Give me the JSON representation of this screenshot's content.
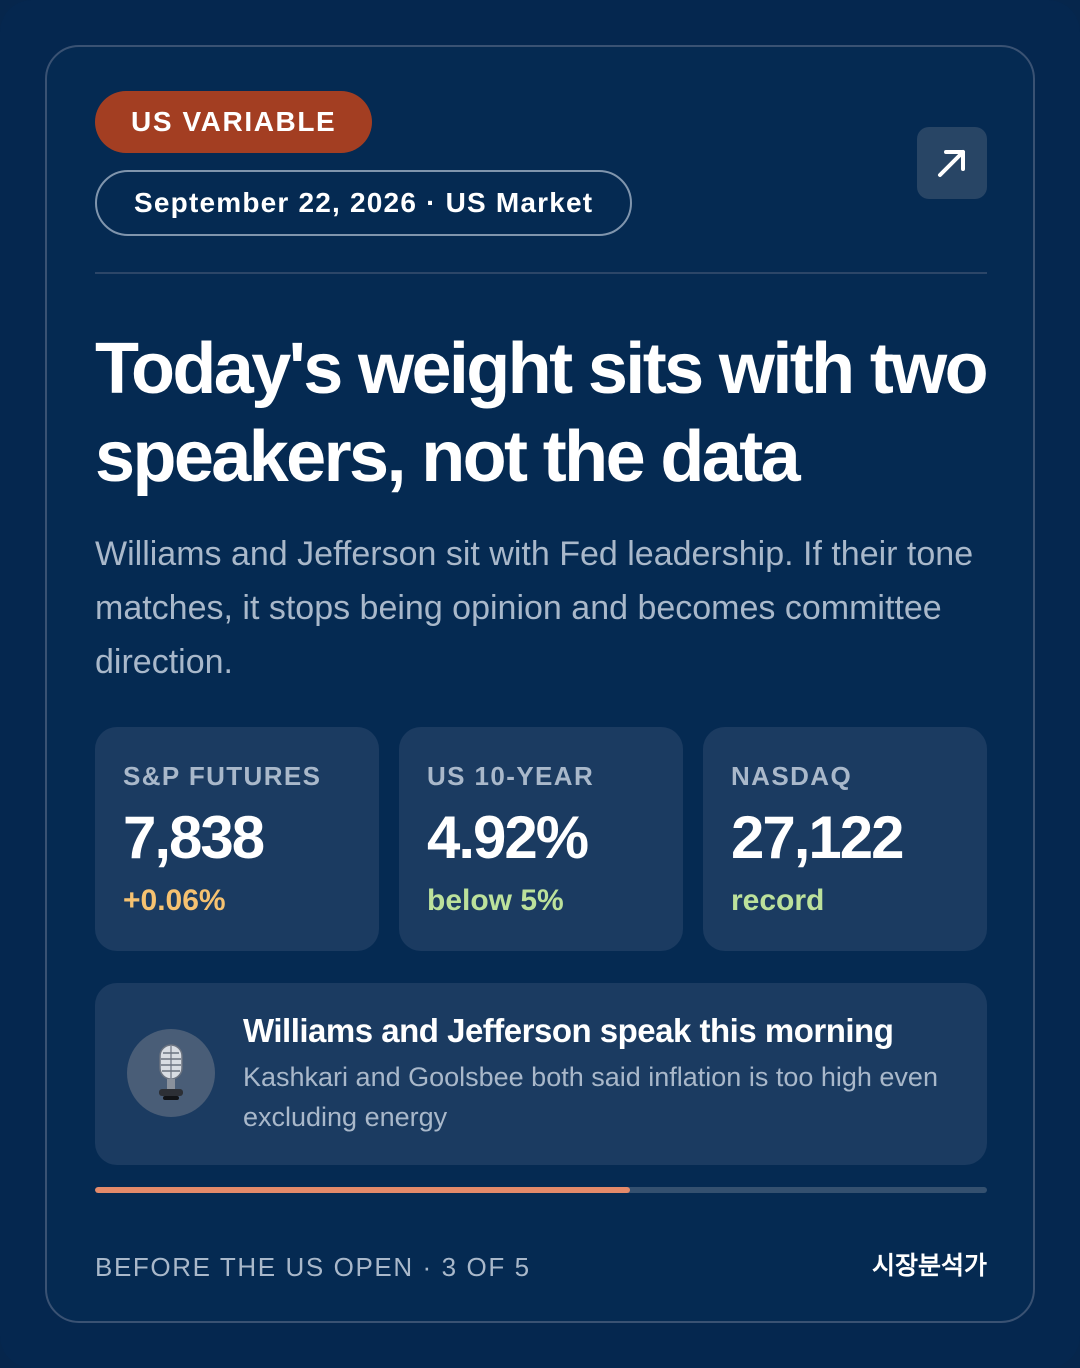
{
  "header": {
    "category_badge": "US VARIABLE",
    "date_market": "September 22, 2026 · US Market",
    "share_icon": "arrow-up-right-icon"
  },
  "main": {
    "headline": "Today's weight sits with two speakers, not the data",
    "subtext": "Williams and Jefferson sit with Fed leadership. If their tone matches, it stops being opinion and becomes committee direction."
  },
  "stats": [
    {
      "label": "S&P FUTURES",
      "value": "7,838",
      "change": "+0.06%",
      "change_color": "#f6c271"
    },
    {
      "label": "US 10-YEAR",
      "value": "4.92%",
      "change": "below 5%",
      "change_color": "#bce19b"
    },
    {
      "label": "NASDAQ",
      "value": "27,122",
      "change": "record",
      "change_color": "#bce19b"
    }
  ],
  "note": {
    "icon": "microphone-icon",
    "title": "Williams and Jefferson speak this morning",
    "body": "Kashkari and Goolsbee both said inflation is too high even excluding energy"
  },
  "progress": {
    "current": 3,
    "total": 5,
    "fill_fraction": 0.6,
    "color": "#e48a6a"
  },
  "footer": {
    "left": "BEFORE THE US OPEN · 3 OF 5",
    "right": "시장분석가"
  },
  "colors": {
    "background": "#05274f",
    "card": "#052a52",
    "tile": "#1b3b61",
    "badge": "#a33e22"
  }
}
